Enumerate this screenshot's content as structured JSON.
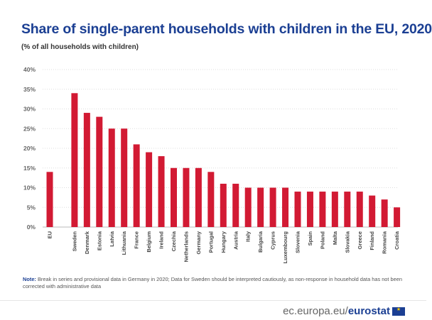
{
  "title": "Share of single-parent households with children in the EU, 2020",
  "subtitle": "(% of all households with children)",
  "note": {
    "label": "Note:",
    "text": "Break in series and provisional data in Germany in 2020; Data for Sweden should be interpreted cautiously, as non-response in household data has not been corrected with administrative data"
  },
  "brand": {
    "domain": "ec.europa.eu/",
    "name": "eurostat",
    "flag_icon": "eu-flag-icon"
  },
  "colors": {
    "bar": "#d21a33",
    "title": "#1b3f93",
    "grid": "#dddddd",
    "axis_text": "#666666"
  },
  "chart_data": {
    "type": "bar",
    "categories": [
      "EU",
      "Sweden",
      "Denmark",
      "Estonia",
      "Latvia",
      "Lithuania",
      "France",
      "Belgium",
      "Ireland",
      "Czechia",
      "Netherlands",
      "Germany",
      "Portugal",
      "Hungary",
      "Austria",
      "Italy",
      "Bulgaria",
      "Cyprus",
      "Luxembourg",
      "Slovenia",
      "Spain",
      "Poland",
      "Malta",
      "Slovakia",
      "Greece",
      "Finland",
      "Romania",
      "Croatia"
    ],
    "values": [
      14,
      34,
      29,
      28,
      25,
      25,
      21,
      19,
      18,
      15,
      15,
      15,
      14,
      11,
      11,
      10,
      10,
      10,
      10,
      9,
      9,
      9,
      9,
      9,
      9,
      8,
      7,
      5
    ],
    "ylim": [
      0,
      40
    ],
    "yticks": [
      "0%",
      "5%",
      "10%",
      "15%",
      "20%",
      "25%",
      "30%",
      "35%",
      "40%"
    ],
    "grid": true,
    "legend": "none",
    "xlabel": "",
    "ylabel": ""
  }
}
